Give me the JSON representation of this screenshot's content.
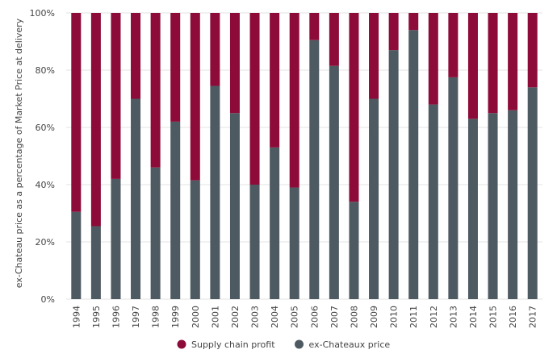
{
  "chart_data": {
    "type": "stacked_bar",
    "y_label": "ex-Chateau price as a percentage of Market Price at delivery",
    "categories": [
      "1994",
      "1995",
      "1996",
      "1997",
      "1998",
      "1999",
      "2000",
      "2001",
      "2002",
      "2003",
      "2004",
      "2005",
      "2006",
      "2007",
      "2008",
      "2009",
      "2010",
      "2011",
      "2012",
      "2013",
      "2014",
      "2015",
      "2016",
      "2017"
    ],
    "series": [
      {
        "name": "ex-Chateaux price",
        "color": "#4e5a61",
        "values": [
          30.5,
          25.5,
          42,
          70,
          46,
          62,
          41.5,
          74.5,
          65,
          40,
          53,
          39,
          90.5,
          81.5,
          34,
          70,
          87,
          94,
          68,
          77.5,
          63,
          65,
          66,
          74
        ]
      },
      {
        "name": "Supply chain profit",
        "color": "#8c0b38",
        "values": [
          69.5,
          74.5,
          58,
          30,
          54,
          38,
          58.5,
          25.5,
          35,
          60,
          47,
          61,
          9.5,
          18.5,
          66,
          30,
          13,
          6,
          32,
          22.5,
          37,
          35,
          34,
          26
        ]
      }
    ],
    "legend_order": [
      1,
      0
    ],
    "ylim": [
      0,
      100
    ],
    "yticks": [
      {
        "value": 0,
        "label": "0%"
      },
      {
        "value": 20,
        "label": "20%"
      },
      {
        "value": 40,
        "label": "40%"
      },
      {
        "value": 60,
        "label": "60%"
      },
      {
        "value": 80,
        "label": "80%"
      },
      {
        "value": 100,
        "label": "100%"
      }
    ],
    "grid": true
  }
}
